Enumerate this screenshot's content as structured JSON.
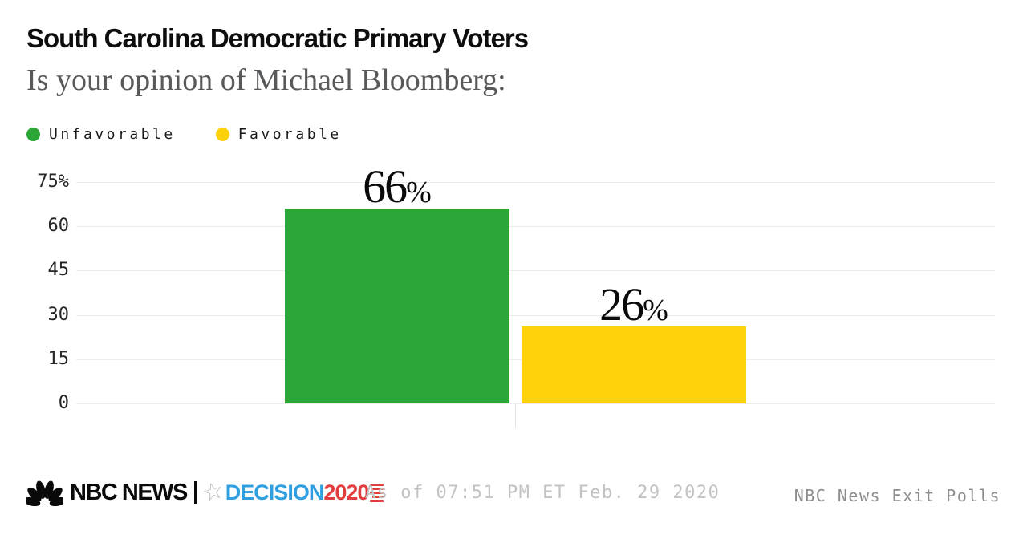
{
  "header": {
    "title": "South Carolina Democratic Primary Voters",
    "subtitle": "Is your opinion of Michael Bloomberg:"
  },
  "legend": [
    {
      "label": "Unfavorable",
      "color": "#2ca637"
    },
    {
      "label": "Favorable",
      "color": "#fed20a"
    }
  ],
  "chart_data": {
    "type": "bar",
    "title": "Is your opinion of Michael Bloomberg:",
    "categories": [
      "Unfavorable",
      "Favorable"
    ],
    "values": [
      66,
      26
    ],
    "unit": "%",
    "colors": [
      "#2ca637",
      "#fed20a"
    ],
    "xlabel": "",
    "ylabel": "",
    "ylim": [
      0,
      75
    ],
    "yticks": [
      "75%",
      "60",
      "45",
      "30",
      "15",
      "0"
    ],
    "grid": true,
    "legend_position": "top-left",
    "value_labels": [
      "66%",
      "26%"
    ]
  },
  "footer": {
    "brand": "NBC NEWS",
    "peacock_icon": "nbc-peacock-icon",
    "star_icon": "star-icon",
    "star_glyph": "☆",
    "decision_label": "DECISION",
    "decision_year": "2020",
    "as_of": "As of 07:51 PM ET Feb. 29 2020",
    "source": "NBC News Exit Polls"
  }
}
